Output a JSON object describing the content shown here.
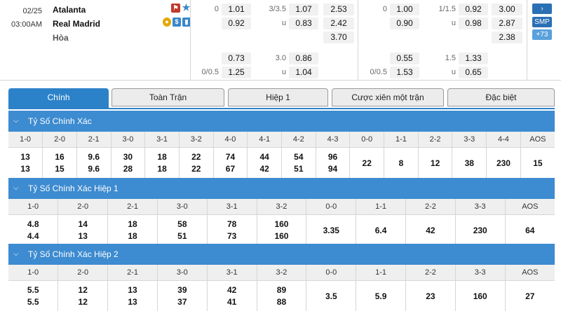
{
  "match": {
    "date": "02/25",
    "time": "03:00AM",
    "home": "Atalanta",
    "away": "Real Madrid",
    "draw": "Hòa"
  },
  "full_time": {
    "hcap_line_1": "0",
    "hcap_home_1": "1.01",
    "hcap_away_1": "0.92",
    "ou_line_1": "3/3.5",
    "ou_over_1": "1.07",
    "ou_u_label": "u",
    "ou_under_1": "0.83",
    "x12_home": "2.53",
    "x12_away": "2.42",
    "x12_draw": "3.70",
    "hcap_home_2": "0.73",
    "hcap_line_2": "0/0.5",
    "hcap_away_2": "1.25",
    "ou_line_2": "3.0",
    "ou_over_2": "0.86",
    "ou_under_2": "1.04"
  },
  "half_time": {
    "hcap_line_1": "0",
    "hcap_home_1": "1.00",
    "hcap_away_1": "0.90",
    "ou_line_1": "1/1.5",
    "ou_over_1": "0.92",
    "ou_under_1": "0.98",
    "x12_home": "3.00",
    "x12_away": "2.87",
    "x12_draw": "2.38",
    "hcap_home_2": "0.55",
    "hcap_line_2": "0/0.5",
    "hcap_away_2": "1.53",
    "ou_line_2": "1.5",
    "ou_over_2": "1.33",
    "ou_under_2": "0.65"
  },
  "side": {
    "arrow": "›",
    "smp": "SMP",
    "count": "+73"
  },
  "tabs": [
    "Chính",
    "Toàn Trận",
    "Hiệp 1",
    "Cược xiên một trận",
    "Đặc biệt"
  ],
  "sections": [
    {
      "title": "Tỷ Số Chính Xác",
      "headers": [
        "1-0",
        "2-0",
        "2-1",
        "3-0",
        "3-1",
        "3-2",
        "4-0",
        "4-1",
        "4-2",
        "4-3",
        "0-0",
        "1-1",
        "2-2",
        "3-3",
        "4-4",
        "AOS"
      ],
      "home": [
        "13",
        "16",
        "9.6",
        "30",
        "18",
        "22",
        "74",
        "44",
        "54",
        "96"
      ],
      "away": [
        "13",
        "15",
        "9.6",
        "28",
        "18",
        "22",
        "67",
        "42",
        "51",
        "94"
      ],
      "single": [
        "22",
        "8",
        "12",
        "38",
        "230",
        "15"
      ]
    },
    {
      "title": "Tỷ Số Chính Xác Hiệp 1",
      "headers": [
        "1-0",
        "2-0",
        "2-1",
        "3-0",
        "3-1",
        "3-2",
        "0-0",
        "1-1",
        "2-2",
        "3-3",
        "AOS"
      ],
      "home": [
        "4.8",
        "14",
        "18",
        "58",
        "78",
        "160"
      ],
      "away": [
        "4.4",
        "13",
        "18",
        "51",
        "73",
        "160"
      ],
      "single": [
        "3.35",
        "6.4",
        "42",
        "230",
        "64"
      ]
    },
    {
      "title": "Tỷ Số Chính Xác Hiệp 2",
      "headers": [
        "1-0",
        "2-0",
        "2-1",
        "3-0",
        "3-1",
        "3-2",
        "0-0",
        "1-1",
        "2-2",
        "3-3",
        "AOS"
      ],
      "home": [
        "5.5",
        "12",
        "13",
        "39",
        "42",
        "89"
      ],
      "away": [
        "5.5",
        "12",
        "13",
        "37",
        "41",
        "88"
      ],
      "single": [
        "3.5",
        "5.9",
        "23",
        "160",
        "27"
      ]
    }
  ],
  "icon_names": [
    "red-card-icon",
    "favorite-star-icon",
    "coin-icon",
    "dollar-icon",
    "stats-bars-icon",
    "chevron-down-icon"
  ]
}
